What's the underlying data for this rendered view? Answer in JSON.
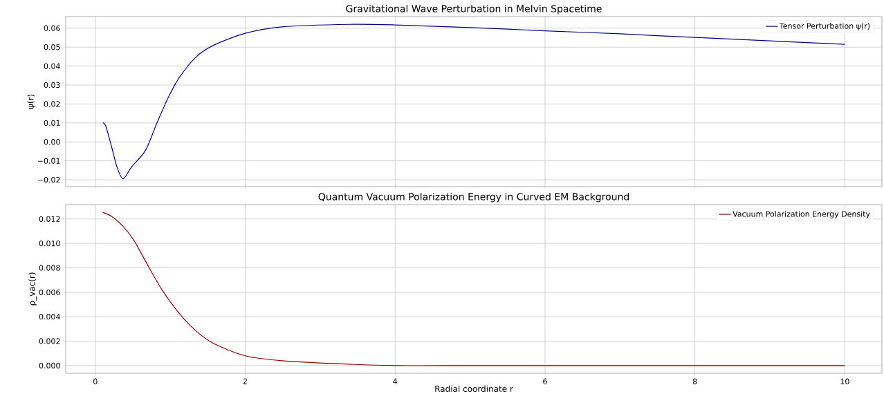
{
  "chart_data": [
    {
      "type": "line",
      "title": "Gravitational Wave Perturbation in Melvin Spacetime",
      "ylabel": "ψ(r)",
      "x": [
        0.1,
        0.14,
        0.22,
        0.29,
        0.37,
        0.48,
        0.67,
        0.82,
        0.98,
        1.13,
        1.35,
        1.58,
        2,
        2.49,
        3.4,
        4,
        5,
        6,
        7,
        8,
        9,
        10
      ],
      "series": [
        {
          "name": "Tensor Perturbation ψ(r)",
          "color": "#00008b",
          "values": [
            0.01,
            0.0083,
            -0.003,
            -0.0134,
            -0.0195,
            -0.0134,
            -0.0044,
            0.0098,
            0.024,
            0.0345,
            0.045,
            0.051,
            0.0573,
            0.0607,
            0.062,
            0.0617,
            0.0603,
            0.0586,
            0.057,
            0.0551,
            0.0533,
            0.0515
          ]
        }
      ],
      "xlim": [
        -0.395,
        10.495
      ],
      "xticks": [
        0,
        2,
        4,
        6,
        8,
        10
      ],
      "ylim": [
        -0.0236,
        0.0661
      ],
      "yticks": [
        {
          "value": -0.02,
          "label": "−0.02"
        },
        {
          "value": -0.01,
          "label": "−0.01"
        },
        {
          "value": 0,
          "label": "0.00"
        },
        {
          "value": 0.01,
          "label": "0.01"
        },
        {
          "value": 0.02,
          "label": "0.02"
        },
        {
          "value": 0.03,
          "label": "0.03"
        },
        {
          "value": 0.04,
          "label": "0.04"
        },
        {
          "value": 0.05,
          "label": "0.05"
        },
        {
          "value": 0.06,
          "label": "0.06"
        }
      ],
      "grid": true,
      "legend": "top right",
      "tick_labels": "y",
      "line_style": "solid",
      "marker": "none"
    },
    {
      "type": "line",
      "title": "Quantum Vacuum Polarization Energy in Curved EM Background",
      "xlabel": "Radial coordinate r",
      "ylabel": "ρ_vac(r)",
      "x": [
        0.1,
        0.22,
        0.37,
        0.52,
        0.71,
        0.9,
        1.13,
        1.35,
        1.58,
        2,
        2.49,
        3.24,
        4,
        5,
        6,
        7,
        8,
        9,
        10
      ],
      "series": [
        {
          "name": "Vacuum Polarization Energy Density",
          "color": "#8b0000",
          "values": [
            0.01255,
            0.0122,
            0.0114,
            0.0102,
            0.0081,
            0.0061,
            0.0042,
            0.0028,
            0.0018,
            0.0008,
            0.0004,
            0.00015,
            0,
            0,
            0,
            0,
            0,
            0,
            0
          ]
        }
      ],
      "xlim": [
        -0.395,
        10.495
      ],
      "xticks": [
        0,
        2,
        4,
        6,
        8,
        10
      ],
      "ylim": [
        -0.00063,
        0.01318
      ],
      "yticks": [
        {
          "value": 0,
          "label": "0.000"
        },
        {
          "value": 0.002,
          "label": "0.002"
        },
        {
          "value": 0.004,
          "label": "0.004"
        },
        {
          "value": 0.006,
          "label": "0.006"
        },
        {
          "value": 0.008,
          "label": "0.008"
        },
        {
          "value": 0.01,
          "label": "0.010"
        },
        {
          "value": 0.012,
          "label": "0.012"
        }
      ],
      "grid": true,
      "legend": "top right",
      "line_style": "solid",
      "marker": "none"
    }
  ]
}
